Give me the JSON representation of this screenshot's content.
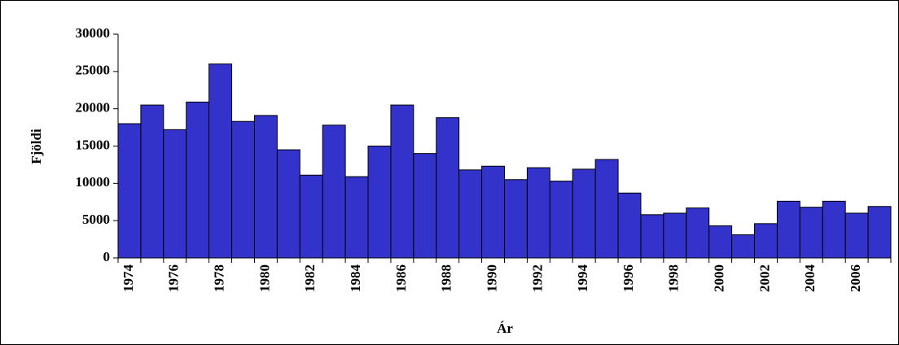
{
  "chart_data": {
    "type": "bar",
    "x_label": "Ár",
    "y_label": "Fjöldi",
    "categories": [
      "1974",
      null,
      "1976",
      null,
      "1978",
      null,
      "1980",
      null,
      "1982",
      null,
      "1984",
      null,
      "1986",
      null,
      "1988",
      null,
      "1990",
      null,
      "1992",
      null,
      "1994",
      null,
      "1996",
      null,
      "1998",
      null,
      "2000",
      null,
      "2002",
      null,
      "2004",
      null,
      "2006",
      null
    ],
    "values": [
      18000,
      20500,
      17200,
      20900,
      26000,
      18300,
      19100,
      14500,
      11100,
      17800,
      10900,
      15000,
      20500,
      14000,
      18800,
      11800,
      12300,
      10500,
      12100,
      10300,
      11900,
      13200,
      8700,
      5800,
      6000,
      6700,
      4300,
      3100,
      4600,
      7600,
      6800,
      7600,
      6000,
      6900
    ],
    "color": "#3333cc",
    "ylim": [
      0,
      30000
    ],
    "yticks": [
      0,
      5000,
      10000,
      15000,
      20000,
      25000,
      30000
    ],
    "grid": false
  }
}
